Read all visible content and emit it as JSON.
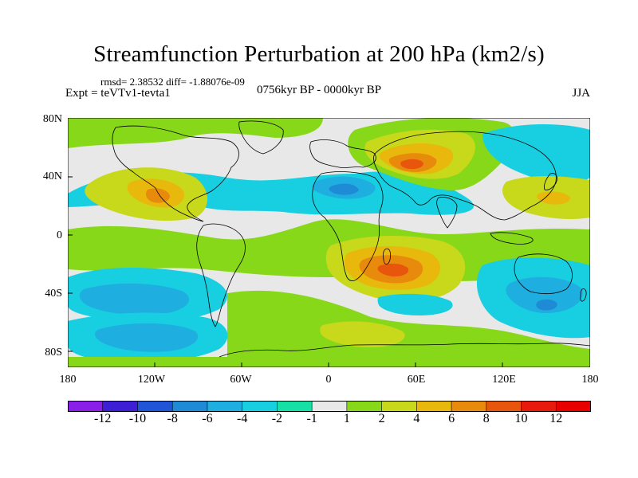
{
  "title": "Streamfunction Perturbation at 200 hPa (km2/s)",
  "stats": "rmsd= 2.38532 diff= -1.88076e-09",
  "experiment": "Expt = teVTv1-tevta1",
  "period": "0756kyr BP - 0000kyr BP",
  "season": "JJA",
  "lat_labels": [
    "80N",
    "40N",
    "0",
    "40S",
    "80S"
  ],
  "lon_labels": [
    "180",
    "120W",
    "60W",
    "0",
    "60E",
    "120E",
    "180"
  ],
  "colorbar": {
    "labels": [
      "-12",
      "-10",
      "-8",
      "-6",
      "-4",
      "-2",
      "-1",
      "1",
      "2",
      "4",
      "6",
      "8",
      "10",
      "12"
    ],
    "colors": [
      "#8a1fe8",
      "#3d1fd6",
      "#1f55d6",
      "#1f8ad6",
      "#1faee0",
      "#17cfe0",
      "#16e0a5",
      "#e8e8e8",
      "#88d81a",
      "#c8d81a",
      "#e8b80c",
      "#e88a0c",
      "#e8550c",
      "#e81a0c",
      "#e80000"
    ]
  },
  "chart_data": {
    "type": "heatmap",
    "variable": "Streamfunction Perturbation at 200 hPa",
    "units": "km2/s",
    "season": "JJA",
    "x_range": [
      -180,
      180
    ],
    "y_range": [
      -90,
      90
    ],
    "levels": [
      -12,
      -10,
      -8,
      -6,
      -4,
      -2,
      -1,
      1,
      2,
      4,
      6,
      8,
      10,
      12
    ],
    "features": [
      {
        "name": "positive_center_central_asia",
        "lon": 50,
        "lat": 45,
        "value": 9
      },
      {
        "name": "positive_center_southern_africa",
        "lon": 45,
        "lat": -28,
        "value": 7
      },
      {
        "name": "negative_center_north_africa",
        "lon": 10,
        "lat": 30,
        "value": -6
      },
      {
        "name": "positive_center_north_america",
        "lon": -110,
        "lat": 30,
        "value": 5
      },
      {
        "name": "negative_center_south_pacific_east",
        "lon": -110,
        "lat": -55,
        "value": -4
      },
      {
        "name": "negative_center_australia_south",
        "lon": 150,
        "lat": -45,
        "value": -5
      },
      {
        "name": "positive_center_east_asia",
        "lon": 140,
        "lat": 25,
        "value": 3
      },
      {
        "name": "negative_center_north_pacific",
        "lon": -160,
        "lat": 40,
        "value": -2
      }
    ]
  }
}
